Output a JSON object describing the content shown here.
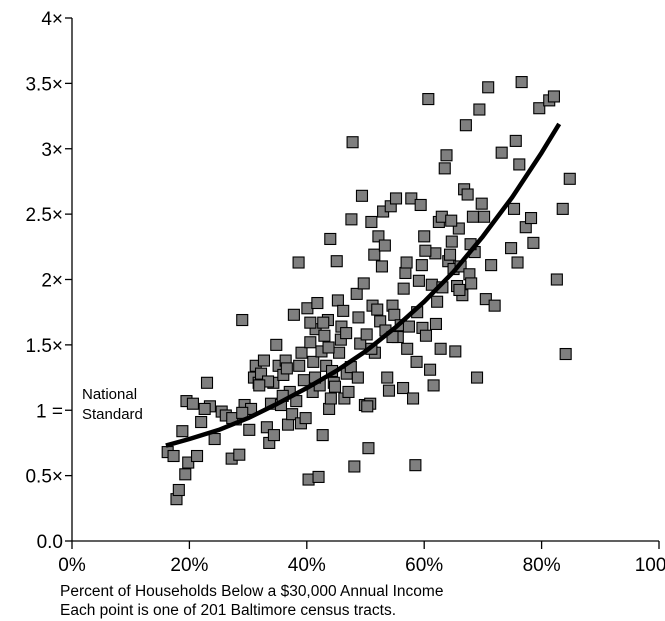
{
  "chart_data": {
    "type": "scatter",
    "xlabel": "Percent of Households Below a $30,000 Annual Income",
    "note": "Each point is one of 201 Baltimore census tracts.",
    "xlim": [
      0,
      100
    ],
    "ylim": [
      0,
      4
    ],
    "x_ticks": [
      0,
      20,
      40,
      60,
      80,
      100
    ],
    "x_tick_labels": [
      "0%",
      "20%",
      "40%",
      "60%",
      "80%",
      "100%"
    ],
    "y_ticks": [
      0,
      0.5,
      1,
      1.5,
      2,
      2.5,
      3,
      3.5,
      4
    ],
    "y_tick_labels": [
      "0.0",
      "0.5×",
      "1 =",
      "1.5×",
      "2×",
      "2.5×",
      "3×",
      "3.5×",
      "4×"
    ],
    "reference_label": "National\nStandard",
    "grid": false,
    "legend": "none",
    "marker_color": "#7f7f7f",
    "marker_edge_color": "#000000",
    "trend_color": "#000000",
    "trend_line": {
      "x": [
        16,
        20,
        25,
        30,
        35,
        40,
        45,
        50,
        55,
        60,
        65,
        70,
        75,
        80,
        83
      ],
      "y": [
        0.73,
        0.78,
        0.85,
        0.94,
        1.05,
        1.17,
        1.3,
        1.45,
        1.63,
        1.83,
        2.06,
        2.33,
        2.63,
        2.97,
        3.19
      ]
    },
    "points": [
      [
        16.3,
        0.68
      ],
      [
        17.3,
        0.65
      ],
      [
        17.8,
        0.32
      ],
      [
        18.2,
        0.39
      ],
      [
        18.8,
        0.84
      ],
      [
        19.3,
        0.51
      ],
      [
        19.5,
        1.07
      ],
      [
        19.8,
        0.6
      ],
      [
        20.6,
        1.05
      ],
      [
        21.3,
        0.65
      ],
      [
        22.0,
        0.91
      ],
      [
        23.0,
        1.21
      ],
      [
        23.5,
        1.03
      ],
      [
        24.3,
        0.78
      ],
      [
        25.5,
        0.99
      ],
      [
        26.2,
        0.96
      ],
      [
        27.2,
        0.63
      ],
      [
        27.9,
        0.93
      ],
      [
        28.5,
        0.66
      ],
      [
        29.0,
        1.69
      ],
      [
        29.4,
        1.04
      ],
      [
        30.2,
        0.85
      ],
      [
        30.5,
        1.01
      ],
      [
        31.0,
        1.25
      ],
      [
        31.3,
        1.34
      ],
      [
        31.8,
        1.21
      ],
      [
        32.2,
        1.28
      ],
      [
        32.7,
        1.38
      ],
      [
        33.2,
        0.87
      ],
      [
        33.6,
        0.75
      ],
      [
        33.9,
        1.05
      ],
      [
        34.3,
        1.21
      ],
      [
        34.4,
        0.81
      ],
      [
        34.8,
        1.5
      ],
      [
        35.2,
        1.34
      ],
      [
        35.6,
        1.04
      ],
      [
        36.0,
        1.27
      ],
      [
        36.4,
        1.38
      ],
      [
        36.8,
        0.89
      ],
      [
        37.1,
        1.14
      ],
      [
        37.5,
        0.97
      ],
      [
        37.8,
        1.73
      ],
      [
        38.2,
        1.07
      ],
      [
        38.6,
        2.13
      ],
      [
        39.0,
        0.9
      ],
      [
        39.1,
        1.44
      ],
      [
        39.5,
        1.23
      ],
      [
        39.8,
        0.94
      ],
      [
        40.1,
        1.78
      ],
      [
        40.3,
        0.47
      ],
      [
        40.6,
        1.52
      ],
      [
        41.0,
        1.14
      ],
      [
        41.1,
        1.37
      ],
      [
        41.5,
        1.62
      ],
      [
        41.8,
        1.82
      ],
      [
        42.0,
        0.49
      ],
      [
        42.2,
        1.19
      ],
      [
        42.5,
        1.45
      ],
      [
        42.7,
        0.81
      ],
      [
        43.0,
        1.57
      ],
      [
        43.3,
        1.34
      ],
      [
        43.6,
        1.69
      ],
      [
        43.8,
        1.01
      ],
      [
        44.1,
        1.09
      ],
      [
        44.3,
        1.3
      ],
      [
        44.6,
        1.21
      ],
      [
        44.8,
        1.18
      ],
      [
        45.1,
        2.14
      ],
      [
        45.3,
        1.84
      ],
      [
        45.5,
        1.44
      ],
      [
        45.9,
        1.64
      ],
      [
        46.2,
        1.76
      ],
      [
        46.4,
        1.09
      ],
      [
        46.8,
        1.28
      ],
      [
        47.1,
        1.14
      ],
      [
        47.6,
        2.46
      ],
      [
        47.8,
        3.05
      ],
      [
        48.1,
        0.57
      ],
      [
        48.5,
        1.89
      ],
      [
        48.8,
        1.71
      ],
      [
        49.1,
        1.51
      ],
      [
        49.4,
        2.64
      ],
      [
        49.7,
        1.97
      ],
      [
        49.9,
        1.04
      ],
      [
        50.2,
        1.58
      ],
      [
        50.5,
        0.71
      ],
      [
        50.8,
        1.05
      ],
      [
        51.0,
        2.44
      ],
      [
        51.2,
        1.8
      ],
      [
        51.5,
        2.19
      ],
      [
        51.6,
        1.44
      ],
      [
        52.0,
        1.77
      ],
      [
        52.2,
        2.33
      ],
      [
        52.5,
        1.68
      ],
      [
        52.8,
        2.1
      ],
      [
        53.0,
        2.52
      ],
      [
        53.4,
        1.61
      ],
      [
        53.7,
        1.25
      ],
      [
        54.0,
        1.15
      ],
      [
        54.3,
        2.56
      ],
      [
        54.6,
        1.8
      ],
      [
        54.9,
        1.73
      ],
      [
        55.2,
        2.62
      ],
      [
        55.5,
        1.56
      ],
      [
        56.0,
        1.65
      ],
      [
        56.4,
        1.17
      ],
      [
        56.8,
        2.05
      ],
      [
        57.1,
        1.47
      ],
      [
        57.4,
        1.64
      ],
      [
        57.8,
        2.62
      ],
      [
        58.1,
        1.09
      ],
      [
        58.5,
        0.58
      ],
      [
        58.8,
        1.75
      ],
      [
        59.1,
        1.99
      ],
      [
        59.4,
        2.57
      ],
      [
        59.7,
        1.63
      ],
      [
        60.0,
        2.33
      ],
      [
        60.3,
        1.57
      ],
      [
        60.7,
        3.38
      ],
      [
        61.0,
        1.31
      ],
      [
        61.3,
        1.96
      ],
      [
        61.6,
        1.19
      ],
      [
        61.9,
        2.2
      ],
      [
        62.2,
        1.83
      ],
      [
        62.5,
        2.44
      ],
      [
        62.8,
        1.47
      ],
      [
        63.1,
        1.94
      ],
      [
        63.5,
        2.85
      ],
      [
        63.8,
        2.95
      ],
      [
        64.1,
        2.14
      ],
      [
        64.4,
        2.19
      ],
      [
        64.7,
        2.29
      ],
      [
        65.0,
        2.08
      ],
      [
        65.3,
        1.45
      ],
      [
        65.6,
        1.95
      ],
      [
        65.9,
        2.39
      ],
      [
        66.2,
        2.1
      ],
      [
        66.5,
        1.88
      ],
      [
        66.8,
        2.69
      ],
      [
        67.1,
        3.18
      ],
      [
        67.4,
        2.65
      ],
      [
        67.7,
        2.04
      ],
      [
        68.0,
        1.97
      ],
      [
        68.3,
        2.48
      ],
      [
        68.6,
        2.21
      ],
      [
        69.0,
        1.25
      ],
      [
        69.4,
        3.3
      ],
      [
        69.8,
        2.58
      ],
      [
        70.2,
        2.48
      ],
      [
        70.5,
        1.85
      ],
      [
        70.9,
        3.47
      ],
      [
        73.2,
        2.97
      ],
      [
        74.8,
        2.24
      ],
      [
        75.3,
        2.54
      ],
      [
        75.6,
        3.06
      ],
      [
        75.9,
        2.13
      ],
      [
        76.2,
        2.88
      ],
      [
        76.6,
        3.51
      ],
      [
        77.3,
        2.4
      ],
      [
        78.2,
        2.47
      ],
      [
        78.6,
        2.28
      ],
      [
        79.6,
        3.31
      ],
      [
        81.3,
        3.37
      ],
      [
        82.1,
        3.4
      ],
      [
        82.6,
        2.0
      ],
      [
        83.6,
        2.54
      ],
      [
        84.1,
        1.43
      ],
      [
        84.8,
        2.77
      ],
      [
        51.0,
        1.47
      ],
      [
        47.5,
        1.33
      ],
      [
        57.0,
        2.13
      ],
      [
        60.2,
        2.22
      ],
      [
        63.0,
        2.48
      ],
      [
        62.0,
        1.66
      ],
      [
        44.0,
        2.31
      ],
      [
        40.6,
        1.67
      ],
      [
        36.6,
        1.32
      ],
      [
        33.4,
        1.22
      ],
      [
        27.3,
        0.94
      ],
      [
        29.0,
        0.98
      ],
      [
        22.6,
        1.01
      ],
      [
        38.7,
        1.34
      ],
      [
        42.8,
        1.67
      ],
      [
        45.8,
        1.54
      ],
      [
        53.3,
        2.26
      ],
      [
        56.5,
        1.93
      ],
      [
        59.6,
        2.11
      ],
      [
        66.0,
        1.92
      ],
      [
        72.0,
        1.8
      ],
      [
        50.3,
        1.03
      ],
      [
        48.7,
        1.25
      ],
      [
        35.9,
        1.11
      ],
      [
        31.9,
        1.19
      ],
      [
        41.4,
        1.25
      ],
      [
        54.6,
        1.56
      ],
      [
        58.7,
        1.37
      ],
      [
        64.6,
        2.45
      ],
      [
        67.9,
        2.27
      ],
      [
        71.4,
        2.11
      ],
      [
        46.7,
        1.59
      ],
      [
        43.7,
        1.48
      ]
    ]
  }
}
